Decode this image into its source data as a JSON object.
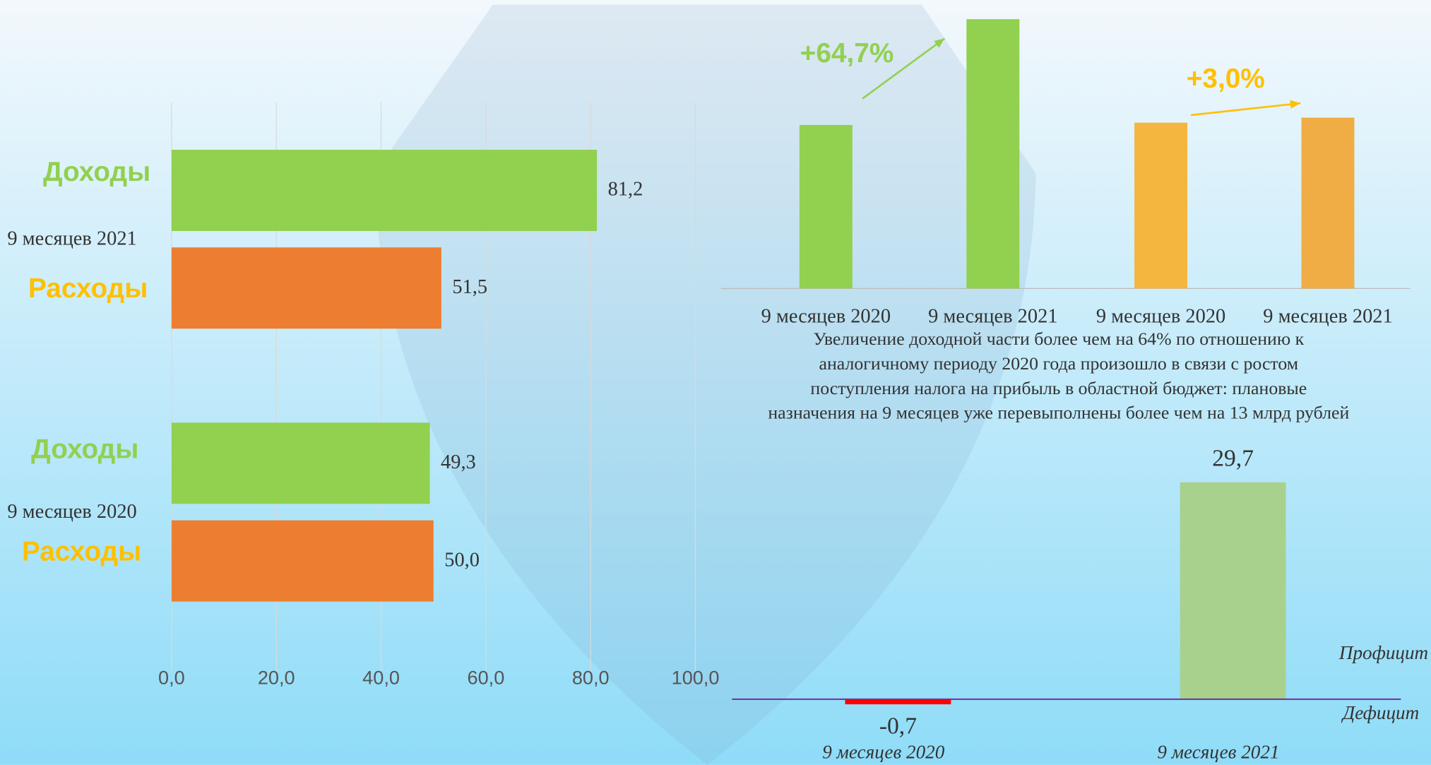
{
  "chart_data": [
    {
      "type": "hbar",
      "categories": [
        "9 месяцев 2021",
        "9 месяцев 2020"
      ],
      "series": [
        {
          "name": "Доходы",
          "color": "#92d050",
          "label_color": "#92d050",
          "values": [
            81.2,
            49.3
          ],
          "value_labels": [
            "81,2",
            "49,3"
          ]
        },
        {
          "name": "Расходы",
          "color": "#ed7d31",
          "label_color": "#ffc000",
          "values": [
            51.5,
            50.0
          ],
          "value_labels": [
            "51,5",
            "50,0"
          ]
        }
      ],
      "xlim": [
        0,
        100
      ],
      "xticks": [
        {
          "value": 0,
          "label": "0,0"
        },
        {
          "value": 20,
          "label": "20,0"
        },
        {
          "value": 40,
          "label": "40,0"
        },
        {
          "value": 60,
          "label": "60,0"
        },
        {
          "value": 80,
          "label": "80,0"
        },
        {
          "value": 100,
          "label": "100,0"
        }
      ],
      "grid": true
    },
    {
      "type": "bar",
      "categories": [
        "9 месяцев 2020",
        "9 месяцев 2021",
        "9 месяцев 2020",
        "9 месяцев 2021"
      ],
      "values": [
        49.3,
        81.2,
        50.0,
        51.5
      ],
      "colors": [
        "#92d050",
        "#92d050",
        "#f4b63f",
        "#f0ad45"
      ],
      "ylim": [
        0,
        82
      ],
      "annotations": [
        {
          "text": "+64,7%",
          "color": "#92d050"
        },
        {
          "text": "+3,0%",
          "color": "#ffc000"
        }
      ],
      "note": [
        "Увеличение доходной части более чем на 64% по отношению к",
        "аналогичному периоду 2020 года произошло в связи с ростом",
        "поступления налога на прибыль в областной бюджет: плановые",
        "назначения на 9 месяцев уже перевыполнены более чем на 13 млрд рублей"
      ]
    },
    {
      "type": "bar",
      "categories": [
        "9 месяцев 2020",
        "9 месяцев 2021"
      ],
      "values": [
        -0.7,
        29.7
      ],
      "value_labels": [
        "-0,7",
        "29,7"
      ],
      "colors": [
        "#ff0000",
        "#a9d18e"
      ],
      "ylim": [
        -4,
        30
      ],
      "labels": [
        "Профицит",
        "Дефицит"
      ]
    }
  ]
}
